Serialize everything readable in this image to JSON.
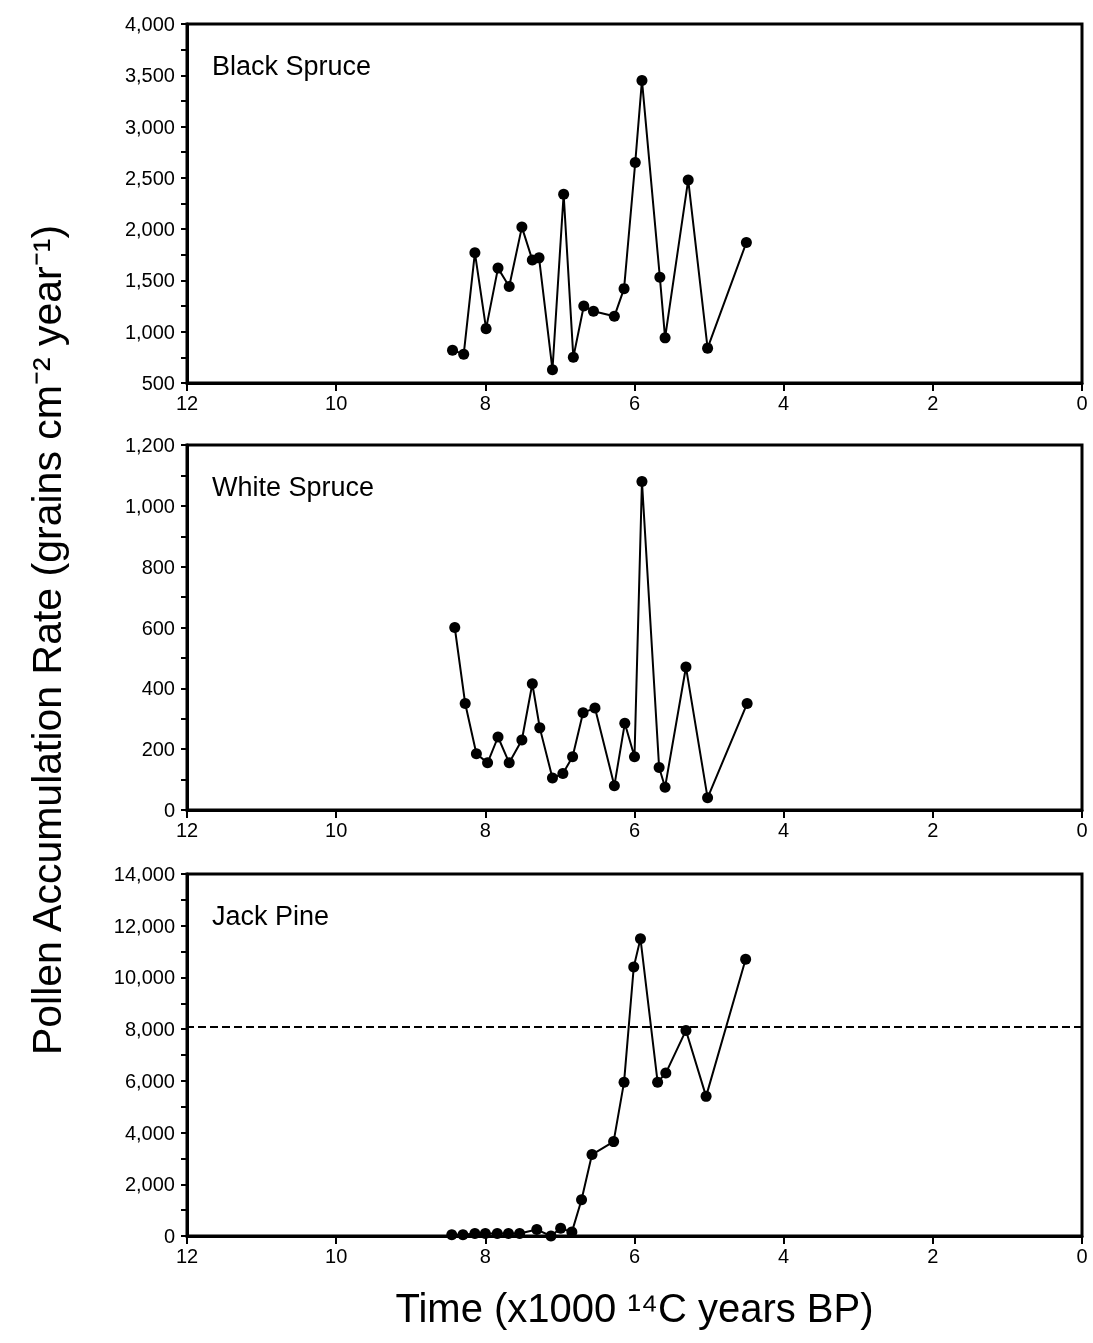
{
  "chart_data": [
    {
      "type": "line",
      "title": "Black Spruce",
      "ylabel": "Pollen Accumulation Rate (grains cm⁻² year⁻¹)",
      "marker": "circle",
      "line_style": "solid",
      "grid": false,
      "xlim": [
        12,
        0
      ],
      "xticks": [
        12,
        10,
        8,
        6,
        4,
        2,
        0
      ],
      "ylim": [
        500,
        4000
      ],
      "yticks": [
        {
          "value": 500,
          "label": "500"
        },
        {
          "value": 750,
          "label": null
        },
        {
          "value": 1000,
          "label": "1,000"
        },
        {
          "value": 1250,
          "label": null
        },
        {
          "value": 1500,
          "label": "1,500"
        },
        {
          "value": 1750,
          "label": null
        },
        {
          "value": 2000,
          "label": "2,000"
        },
        {
          "value": 2250,
          "label": null
        },
        {
          "value": 2500,
          "label": "2,500"
        },
        {
          "value": 2750,
          "label": null
        },
        {
          "value": 3000,
          "label": "3,000"
        },
        {
          "value": 3250,
          "label": null
        },
        {
          "value": 3500,
          "label": "3,500"
        },
        {
          "value": 3750,
          "label": null
        },
        {
          "value": 4000,
          "label": "4,000"
        }
      ],
      "series": [
        {
          "color": "#000000",
          "x": [
            8.44,
            8.29,
            8.14,
            7.99,
            7.83,
            7.68,
            7.51,
            7.37,
            7.28,
            7.1,
            6.95,
            6.82,
            6.68,
            6.55,
            6.27,
            6.14,
            5.99,
            5.9,
            5.66,
            5.59,
            5.28,
            5.02,
            4.5
          ],
          "values": [
            820,
            780,
            1770,
            1030,
            1620,
            1440,
            2020,
            1700,
            1720,
            630,
            2340,
            750,
            1250,
            1200,
            1150,
            1420,
            2650,
            3450,
            1530,
            940,
            2480,
            840,
            1870
          ]
        }
      ]
    },
    {
      "type": "line",
      "title": "White Spruce",
      "marker": "circle",
      "line_style": "solid",
      "grid": false,
      "xlim": [
        12,
        0
      ],
      "xticks": [
        12,
        10,
        8,
        6,
        4,
        2,
        0
      ],
      "ylim": [
        0,
        1200
      ],
      "yticks": [
        {
          "value": 0,
          "label": "0"
        },
        {
          "value": 100,
          "label": null
        },
        {
          "value": 200,
          "label": "200"
        },
        {
          "value": 300,
          "label": null
        },
        {
          "value": 400,
          "label": "400"
        },
        {
          "value": 500,
          "label": null
        },
        {
          "value": 600,
          "label": "600"
        },
        {
          "value": 700,
          "label": null
        },
        {
          "value": 800,
          "label": "800"
        },
        {
          "value": 900,
          "label": null
        },
        {
          "value": 1000,
          "label": "1,000"
        },
        {
          "value": 1100,
          "label": null
        },
        {
          "value": 1200,
          "label": "1,200"
        }
      ],
      "series": [
        {
          "color": "#000000",
          "x": [
            8.41,
            8.27,
            8.12,
            7.97,
            7.83,
            7.68,
            7.51,
            7.37,
            7.27,
            7.1,
            6.96,
            6.83,
            6.69,
            6.53,
            6.27,
            6.13,
            6.0,
            5.9,
            5.67,
            5.59,
            5.31,
            5.02,
            4.49
          ],
          "values": [
            600,
            350,
            185,
            155,
            240,
            155,
            230,
            415,
            270,
            105,
            120,
            175,
            320,
            335,
            80,
            285,
            175,
            1080,
            140,
            75,
            470,
            40,
            350
          ]
        }
      ]
    },
    {
      "type": "line",
      "title": "Jack Pine",
      "xlabel": "Time (x1000 ¹⁴C years BP)",
      "marker": "circle",
      "line_style": "solid",
      "grid": false,
      "xlim": [
        12,
        0
      ],
      "xticks": [
        12,
        10,
        8,
        6,
        4,
        2,
        0
      ],
      "ylim": [
        0,
        14000
      ],
      "yticks": [
        {
          "value": 0,
          "label": "0"
        },
        {
          "value": 1000,
          "label": null
        },
        {
          "value": 2000,
          "label": "2,000"
        },
        {
          "value": 3000,
          "label": null
        },
        {
          "value": 4000,
          "label": "4,000"
        },
        {
          "value": 5000,
          "label": null
        },
        {
          "value": 6000,
          "label": "6,000"
        },
        {
          "value": 7000,
          "label": null
        },
        {
          "value": 8000,
          "label": "8,000"
        },
        {
          "value": 9000,
          "label": null
        },
        {
          "value": 10000,
          "label": "10,000"
        },
        {
          "value": 11000,
          "label": null
        },
        {
          "value": 12000,
          "label": "12,000"
        },
        {
          "value": 13000,
          "label": null
        },
        {
          "value": 14000,
          "label": "14,000"
        }
      ],
      "ref_lines": [
        {
          "axis": "y",
          "value": 8100,
          "line_style": "dashed",
          "color": "#000000"
        }
      ],
      "series": [
        {
          "color": "#000000",
          "x": [
            8.45,
            8.3,
            8.14,
            8.0,
            7.84,
            7.69,
            7.54,
            7.31,
            7.12,
            6.99,
            6.84,
            6.71,
            6.57,
            6.28,
            6.14,
            6.01,
            5.92,
            5.69,
            5.58,
            5.31,
            5.04,
            4.51
          ],
          "values": [
            50,
            50,
            100,
            100,
            100,
            100,
            100,
            250,
            0,
            300,
            150,
            1400,
            3150,
            3650,
            5950,
            10400,
            11500,
            5950,
            6300,
            7950,
            5400,
            10700
          ]
        }
      ]
    }
  ]
}
